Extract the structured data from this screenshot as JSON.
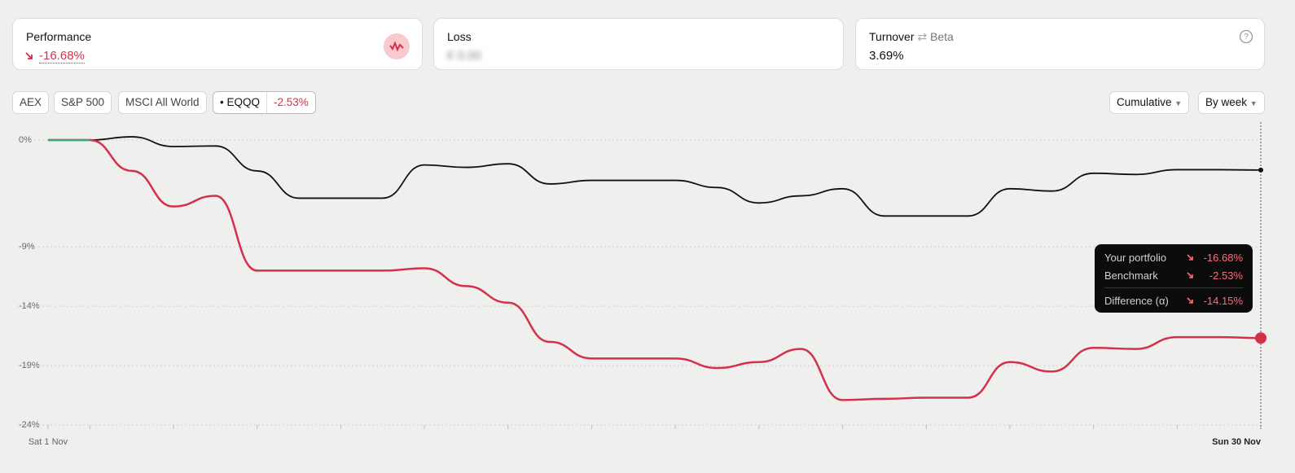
{
  "cards": [
    {
      "title": "Performance",
      "value": "-16.68%"
    },
    {
      "title": "Loss",
      "value": "€ 0.00"
    },
    {
      "title": "Turnover",
      "subtitle": "Beta",
      "value": "3.69%"
    }
  ],
  "benchmarks": [
    "AEX",
    "S&P 500",
    "MSCI All World"
  ],
  "selected_benchmark": {
    "name": "EQQQ",
    "change": "-2.53%"
  },
  "controls": [
    "Cumulative",
    "By week"
  ],
  "chart_data": {
    "type": "line",
    "categories": [
      "Sat 1 Nov",
      null,
      null,
      null,
      null,
      null,
      null,
      null,
      null,
      null,
      null,
      null,
      null,
      null,
      null,
      null,
      null,
      null,
      null,
      null,
      null,
      null,
      null,
      null,
      null,
      null,
      null,
      null,
      null,
      "Sun 30 Nov"
    ],
    "series": [
      {
        "name": "Your portfolio",
        "color": "#d4304a",
        "tooltip_label": "-16.68%",
        "values": [
          0,
          0,
          -2.6,
          -5.6,
          -4.7,
          -11.0,
          -11.0,
          -11.0,
          -11.0,
          -10.8,
          -12.3,
          -13.7,
          -17.0,
          -18.4,
          -18.4,
          -18.4,
          -19.2,
          -18.7,
          -17.6,
          -21.9,
          -21.8,
          -21.7,
          -21.7,
          -18.7,
          -19.5,
          -17.5,
          -17.6,
          -16.6,
          -16.6,
          -16.68
        ]
      },
      {
        "name": "Benchmark",
        "color": "#111111",
        "tooltip_label": "-2.53%",
        "values": [
          0,
          0,
          0.27,
          -0.55,
          -0.5,
          -2.6,
          -4.9,
          -4.9,
          -4.9,
          -2.1,
          -2.3,
          -2.0,
          -3.7,
          -3.4,
          -3.4,
          -3.4,
          -4.0,
          -5.3,
          -4.7,
          -4.1,
          -6.4,
          -6.4,
          -6.4,
          -4.1,
          -4.3,
          -2.8,
          -2.9,
          -2.5,
          -2.5,
          -2.53
        ]
      }
    ],
    "difference": {
      "name": "Difference (α)",
      "tooltip_label": "-14.15%"
    },
    "flat_color": "#3aa876",
    "ylim": [
      -24,
      0
    ],
    "yticks": [
      {
        "value": 0,
        "label": "0%"
      },
      {
        "value": -9,
        "label": "-9%"
      },
      {
        "value": -14,
        "label": "-14%"
      },
      {
        "value": -19,
        "label": "-19%"
      },
      {
        "value": -24,
        "label": "-24%"
      }
    ],
    "grid": true
  }
}
